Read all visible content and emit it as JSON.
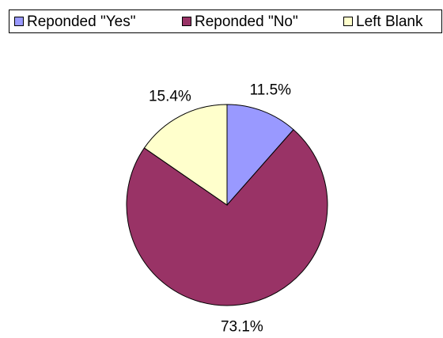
{
  "chart_data": {
    "type": "pie",
    "title": "",
    "slices": [
      {
        "label": "Reponded \"Yes\"",
        "value": 11.5,
        "display": "11.5%",
        "color": "#9999ff"
      },
      {
        "label": "Reponded \"No\"",
        "value": 73.1,
        "display": "73.1%",
        "color": "#993366"
      },
      {
        "label": "Left Blank",
        "value": 15.4,
        "display": "15.4%",
        "color": "#ffffcc"
      }
    ],
    "legend_position": "top",
    "start_angle_deg": 0,
    "direction": "clockwise"
  }
}
